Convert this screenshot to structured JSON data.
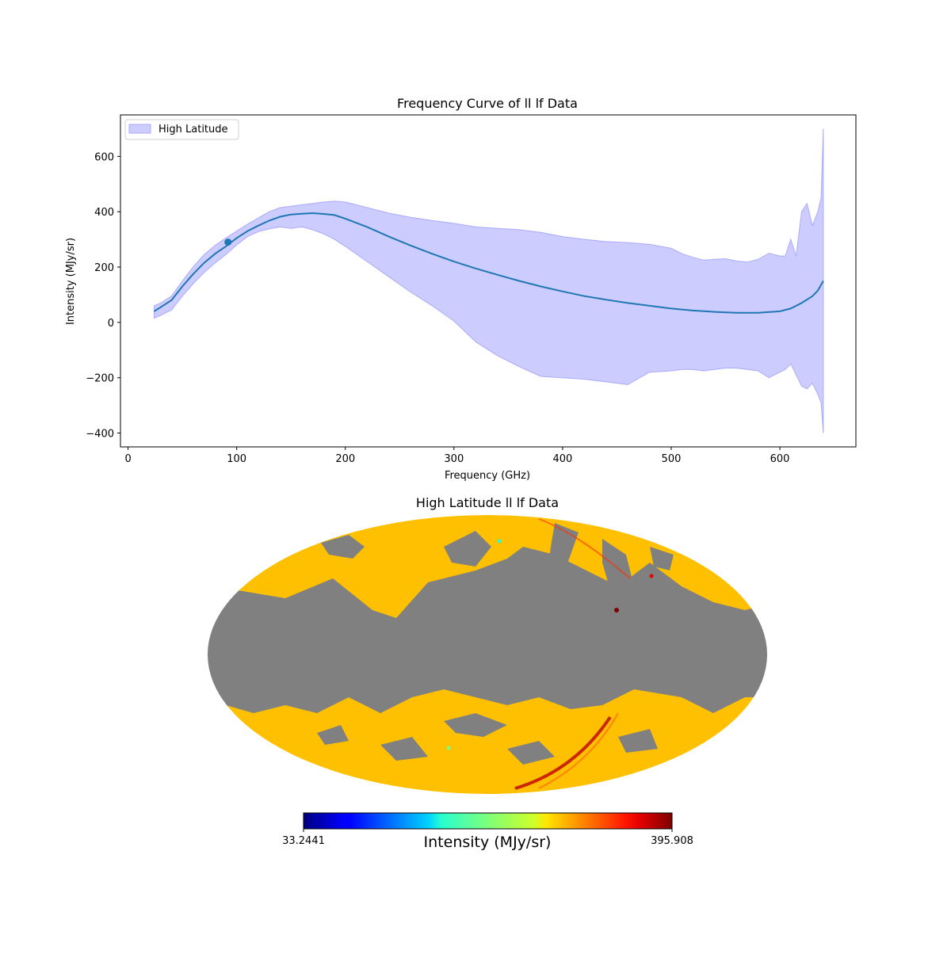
{
  "chart_data": [
    {
      "type": "line",
      "title": "Frequency Curve of ll lf Data",
      "xlabel": "Frequency (GHz)",
      "ylabel": "Intensity (MJy/sr)",
      "xlim": [
        -7,
        670
      ],
      "ylim": [
        -450,
        750
      ],
      "xticks": [
        0,
        100,
        200,
        300,
        400,
        500,
        600
      ],
      "yticks": [
        -400,
        -200,
        0,
        200,
        400,
        600
      ],
      "ytick_labels": [
        "−400",
        "−200",
        "0",
        "200",
        "400",
        "600"
      ],
      "grid": false,
      "legend": {
        "entries": [
          "High Latitude"
        ],
        "placement": "upper left"
      },
      "colors": {
        "mean_line": "#1f77b4",
        "band_fill": "#ccccff",
        "band_edge": "#aaaaff"
      },
      "series": [
        {
          "kind": "mean-line",
          "x": [
            24,
            30,
            40,
            50,
            60,
            70,
            80,
            90,
            100,
            110,
            120,
            130,
            140,
            150,
            160,
            170,
            180,
            190,
            200,
            220,
            240,
            260,
            280,
            300,
            320,
            340,
            360,
            380,
            400,
            420,
            440,
            460,
            480,
            500,
            520,
            540,
            560,
            580,
            600,
            610,
            620,
            630,
            635,
            640
          ],
          "y": [
            40,
            55,
            80,
            130,
            175,
            215,
            248,
            275,
            305,
            330,
            350,
            368,
            382,
            390,
            393,
            395,
            392,
            388,
            375,
            345,
            310,
            278,
            248,
            220,
            195,
            172,
            150,
            130,
            112,
            95,
            82,
            70,
            60,
            50,
            43,
            38,
            35,
            35,
            40,
            50,
            70,
            95,
            115,
            150
          ]
        },
        {
          "kind": "band",
          "name": "High Latitude",
          "x": [
            24,
            30,
            40,
            50,
            60,
            70,
            80,
            90,
            100,
            110,
            120,
            130,
            140,
            150,
            160,
            170,
            180,
            190,
            200,
            220,
            240,
            260,
            280,
            300,
            320,
            340,
            360,
            380,
            400,
            420,
            440,
            460,
            480,
            500,
            510,
            520,
            530,
            540,
            550,
            560,
            570,
            580,
            590,
            600,
            605,
            610,
            615,
            620,
            625,
            630,
            635,
            638,
            640
          ],
          "upper": [
            60,
            70,
            95,
            150,
            200,
            245,
            278,
            305,
            330,
            355,
            378,
            400,
            415,
            420,
            425,
            430,
            435,
            438,
            435,
            415,
            395,
            380,
            368,
            358,
            345,
            340,
            335,
            325,
            310,
            300,
            292,
            288,
            282,
            268,
            248,
            235,
            225,
            228,
            230,
            222,
            218,
            228,
            250,
            240,
            240,
            300,
            240,
            400,
            430,
            350,
            400,
            450,
            700
          ],
          "lower": [
            15,
            25,
            45,
            95,
            140,
            180,
            215,
            245,
            280,
            310,
            328,
            338,
            345,
            340,
            345,
            335,
            320,
            300,
            275,
            220,
            165,
            110,
            60,
            5,
            -70,
            -120,
            -160,
            -195,
            -200,
            -205,
            -215,
            -225,
            -180,
            -175,
            -170,
            -170,
            -175,
            -170,
            -165,
            -165,
            -170,
            -175,
            -200,
            -180,
            -170,
            -150,
            -190,
            -230,
            -240,
            -220,
            -260,
            -290,
            -400
          ]
        }
      ],
      "marker": {
        "x": 92,
        "y": 290
      }
    },
    {
      "type": "heatmap",
      "title": "High Latitude ll lf Data",
      "projection": "mollweide",
      "colormap": "jet",
      "colorbar": {
        "label": "Intensity (MJy/sr)",
        "min": 33.2441,
        "max": 395.908,
        "min_label": "33.2441",
        "max_label": "395.908",
        "orientation": "horizontal"
      },
      "masked_color": "#808080",
      "masked_region": "galactic plane (|b| < ~30 deg)",
      "typical_unmasked_value": 300
    }
  ]
}
